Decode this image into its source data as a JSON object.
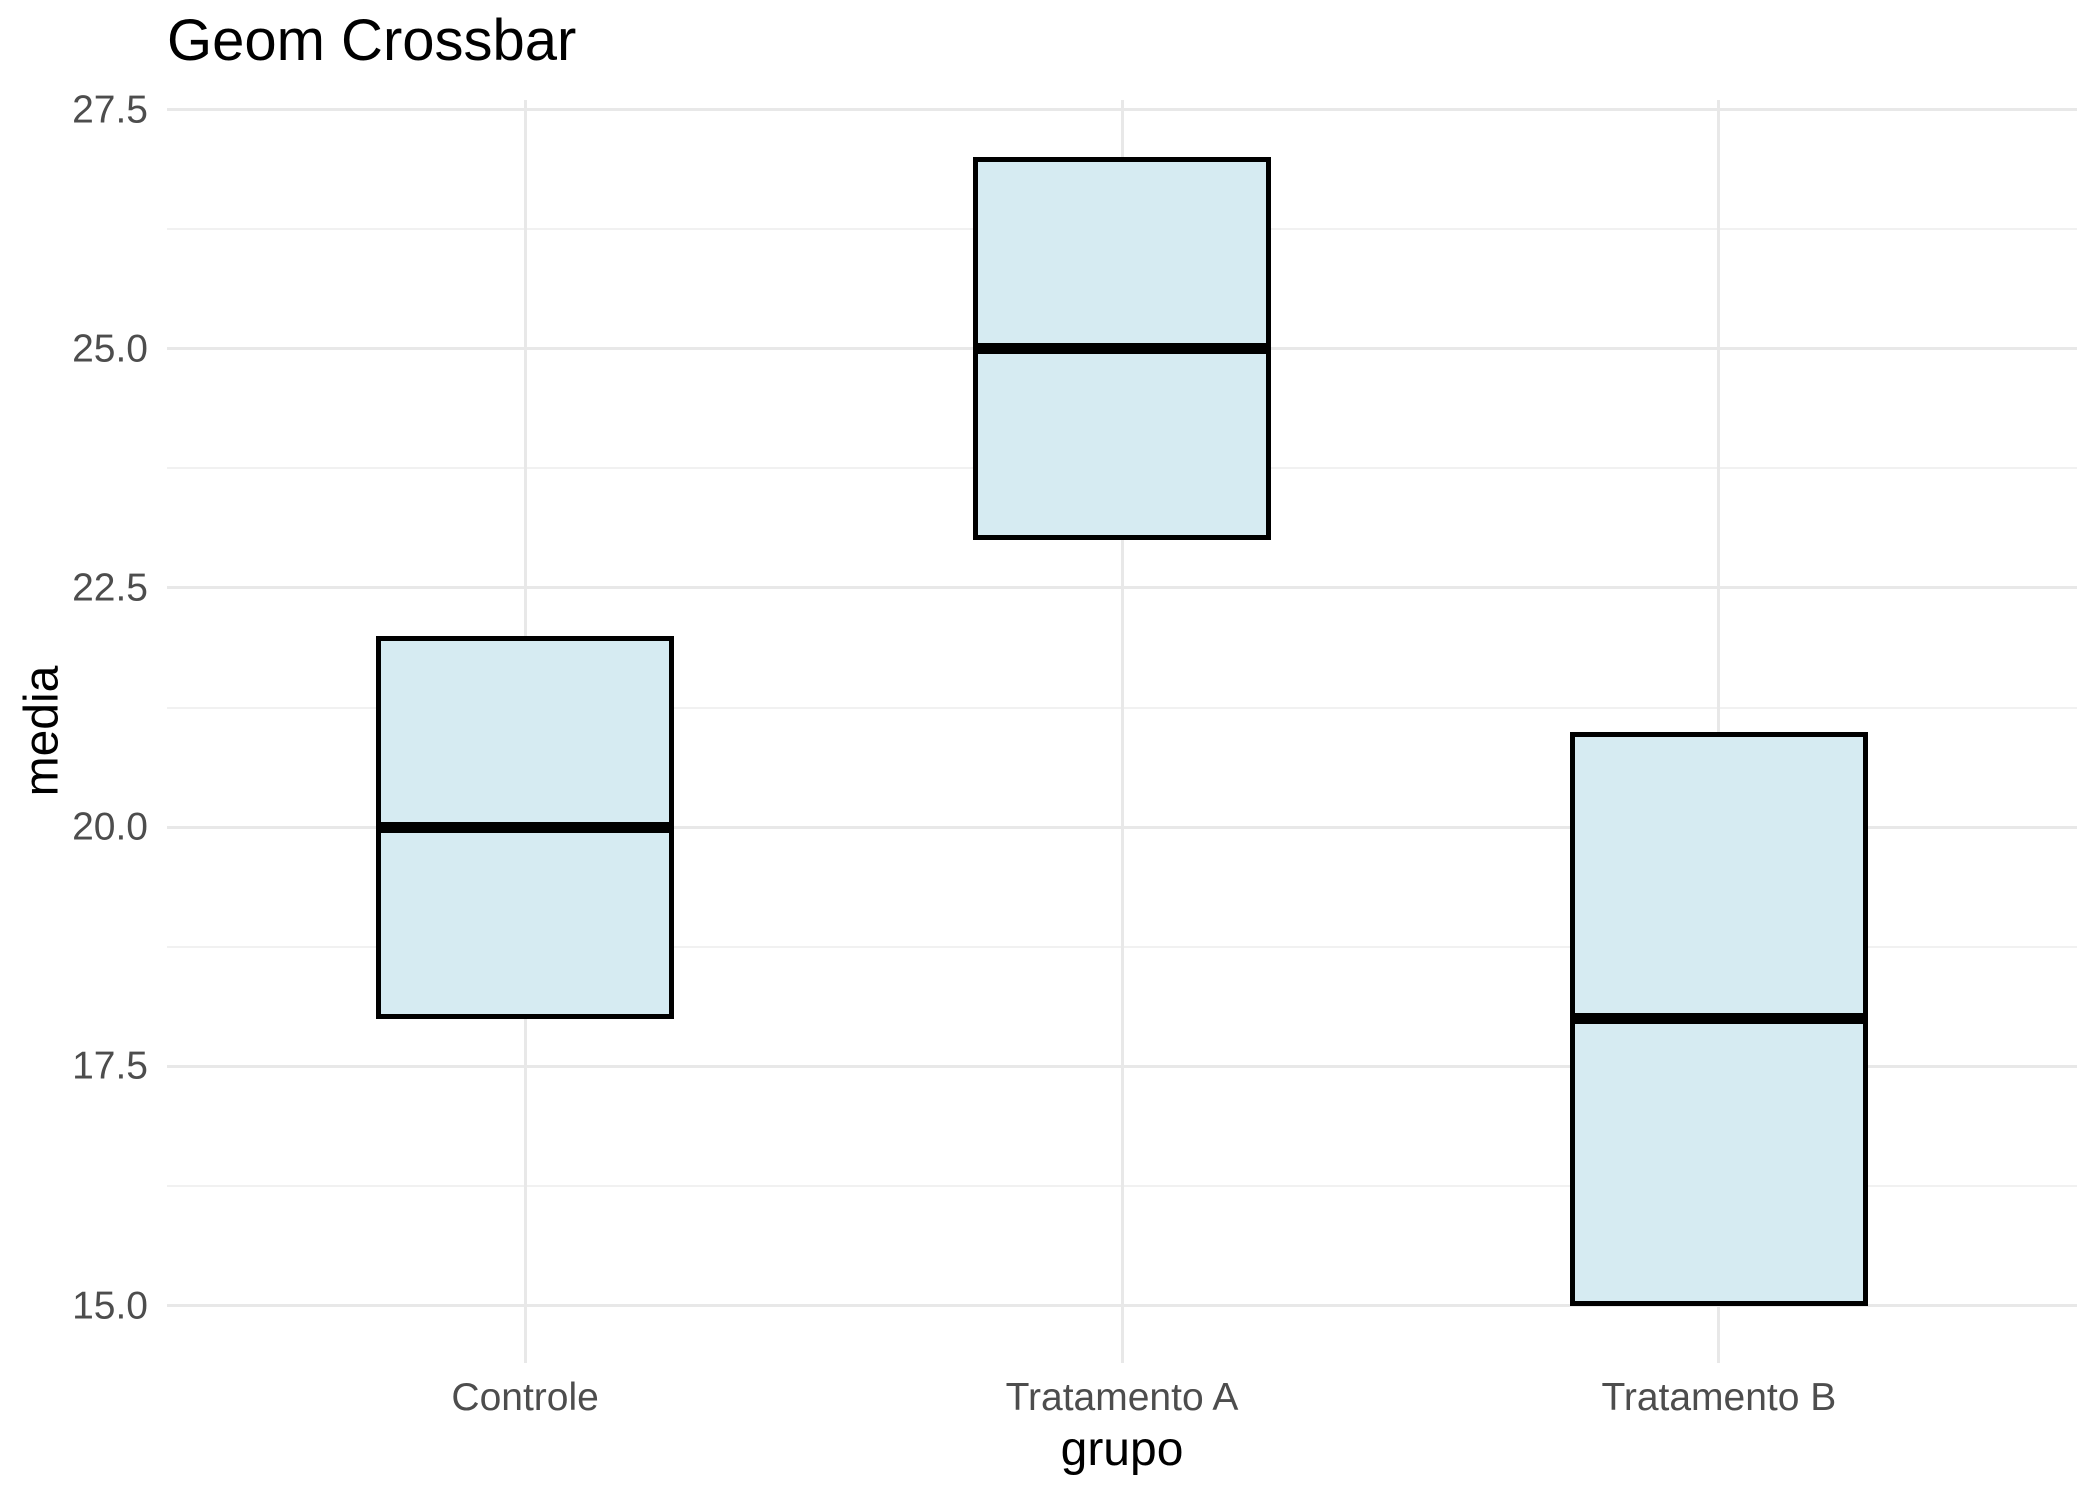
{
  "chart_data": {
    "type": "crossbar",
    "title": "Geom Crossbar",
    "xlabel": "grupo",
    "ylabel": "media",
    "categories": [
      "Controle",
      "Tratamento A",
      "Tratamento B"
    ],
    "series": [
      {
        "name": "crossbars",
        "points": [
          {
            "group": "Controle",
            "ymin": 18,
            "middle": 20,
            "ymax": 22
          },
          {
            "group": "Tratamento A",
            "ymin": 23,
            "middle": 25,
            "ymax": 27
          },
          {
            "group": "Tratamento B",
            "ymin": 15,
            "middle": 18,
            "ymax": 21
          }
        ]
      }
    ],
    "y_ticks": [
      {
        "value": 27.5,
        "label": "27.5"
      },
      {
        "value": 25.0,
        "label": "25.0"
      },
      {
        "value": 22.5,
        "label": "22.5"
      },
      {
        "value": 20.0,
        "label": "20.0"
      },
      {
        "value": 17.5,
        "label": "17.5"
      },
      {
        "value": 15.0,
        "label": "15.0"
      }
    ],
    "y_minor_ticks": [
      26.25,
      23.75,
      21.25,
      18.75,
      16.25
    ],
    "ylim": [
      14.4,
      27.6
    ],
    "bar_width_fraction": 0.5,
    "legend": "none",
    "grid": "horizontal major+minor, vertical major only",
    "colors": {
      "bar_fill": "#d6ebf2",
      "bar_stroke": "#000000",
      "grid_major": "#e8e8e8",
      "grid_minor": "#f1f1f1",
      "tick_label": "#4d4d4d",
      "axis_title": "#000000",
      "title": "#000000",
      "background": "#ffffff"
    }
  }
}
